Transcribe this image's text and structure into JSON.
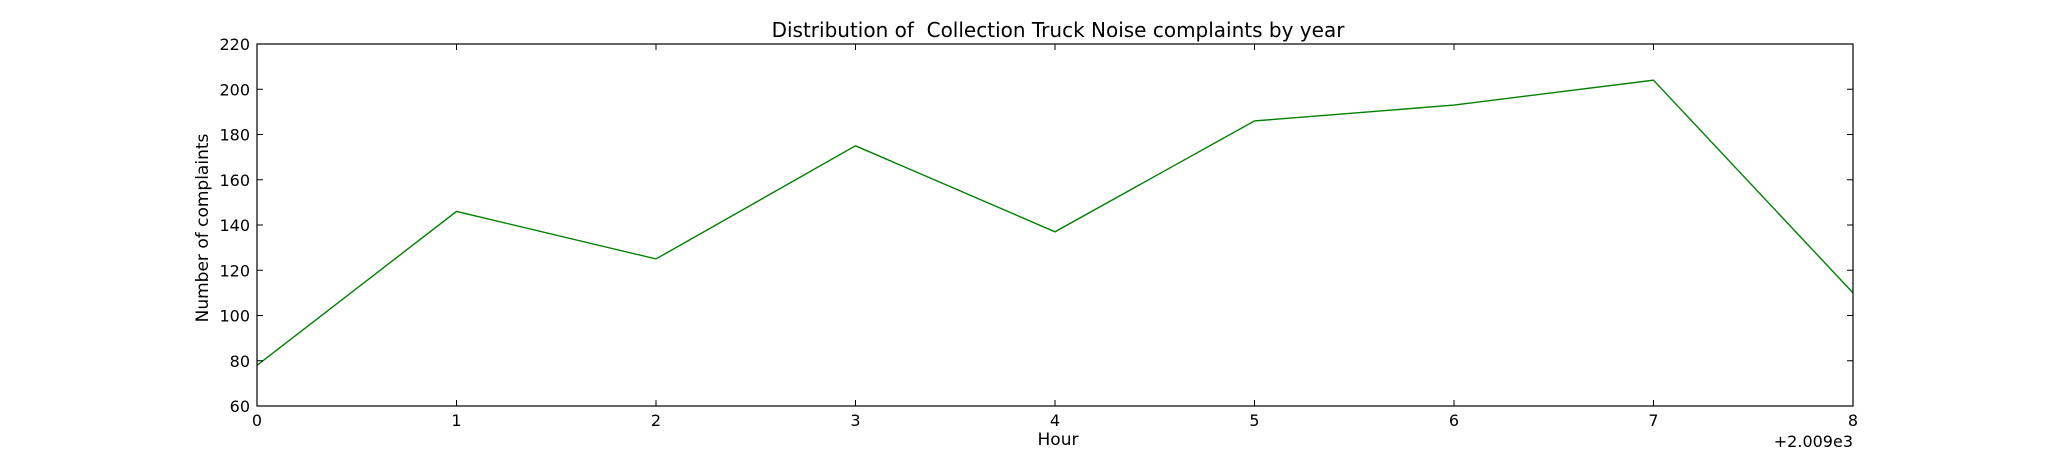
{
  "chart_data": {
    "type": "line",
    "title": "Distribution of  Collection Truck Noise complaints by year",
    "xlabel": "Hour",
    "ylabel": "Number of complaints",
    "x_offset_label": "+2.009e3",
    "x": [
      0,
      1,
      2,
      3,
      4,
      5,
      6,
      7,
      8
    ],
    "xlim": [
      0,
      8
    ],
    "ylim": [
      60,
      220
    ],
    "x_ticks": [
      "0",
      "1",
      "2",
      "3",
      "4",
      "5",
      "6",
      "7",
      "8"
    ],
    "y_ticks": [
      "60",
      "80",
      "100",
      "120",
      "140",
      "160",
      "180",
      "200",
      "220"
    ],
    "series": [
      {
        "color": "#008000",
        "values": [
          78,
          146,
          125,
          175,
          137,
          186,
          193,
          204,
          110
        ]
      }
    ],
    "grid": false,
    "legend": "none"
  }
}
